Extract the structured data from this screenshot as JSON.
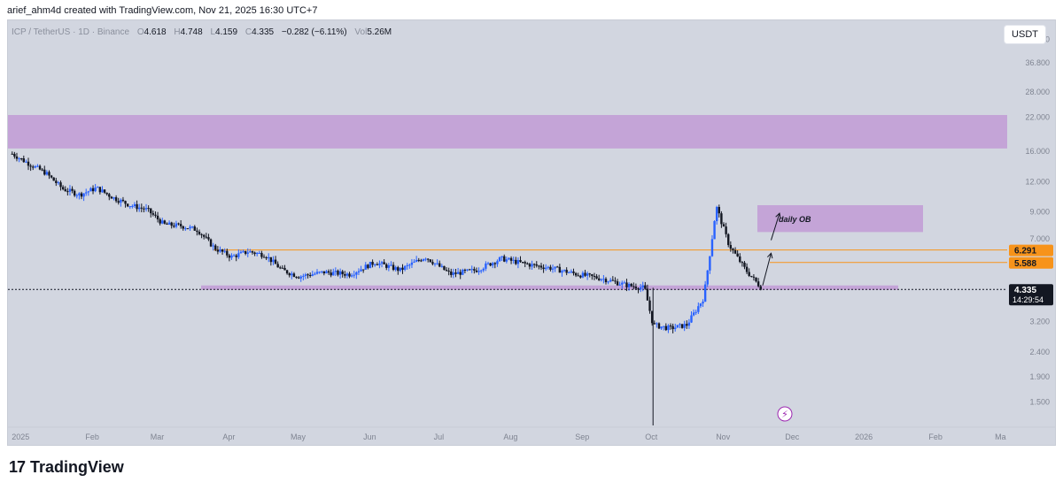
{
  "caption": "arief_ahm4d created with TradingView.com, Nov 21, 2025 16:30 UTC+7",
  "symbol": "ICP / TetherUS · 1D · Binance",
  "ohlc": {
    "open": "4.618",
    "high": "4.748",
    "low": "4.159",
    "close": "4.335",
    "change": "−0.282 (−6.11%)",
    "volume_label": "Vol",
    "volume": "5.26M"
  },
  "currency_badge": "USDT",
  "footer_brand": "TradingView",
  "chart_data": {
    "type": "candlestick",
    "y_scale": "log",
    "ylim": [
      1.2,
      55
    ],
    "y_ticks": [
      "46.000",
      "36.800",
      "28.000",
      "22.000",
      "16.000",
      "12.000",
      "9.000",
      "7.000",
      "3.200",
      "2.400",
      "1.900",
      "1.500"
    ],
    "x_ticks": [
      "2025",
      "Feb",
      "Mar",
      "Apr",
      "May",
      "Jun",
      "Jul",
      "Aug",
      "Sep",
      "Oct",
      "Nov",
      "Dec",
      "2026",
      "Feb",
      "Ma"
    ],
    "price_tags": [
      {
        "value": 6.291,
        "label": "6.291",
        "color": "#f7931a"
      },
      {
        "value": 5.588,
        "label": "5.588",
        "color": "#f7931a"
      },
      {
        "value": 4.335,
        "label": "4.335",
        "sublabel": "14:29:54",
        "color": "#131722"
      }
    ],
    "horizontal_lines": [
      {
        "value": 6.291,
        "color": "#f7931a"
      },
      {
        "value": 5.588,
        "color": "#f7931a"
      },
      {
        "value": 4.335,
        "color": "#131722",
        "dotted": true
      }
    ],
    "zones": [
      {
        "low": 16.4,
        "high": 22.5,
        "color": "#c29fd6"
      },
      {
        "low": 4.32,
        "high": 4.5,
        "color": "#c29fd6"
      },
      {
        "low": 7.45,
        "high": 9.6,
        "color": "#c29fd6",
        "label": "daily OB"
      }
    ],
    "close_path": [
      [
        2024.99,
        15.6
      ],
      [
        2025.01,
        14.2
      ],
      [
        2025.03,
        13.0
      ],
      [
        2025.05,
        11.2
      ],
      [
        2025.07,
        10.6
      ],
      [
        2025.09,
        11.3
      ],
      [
        2025.11,
        10.3
      ],
      [
        2025.13,
        9.6
      ],
      [
        2025.15,
        9.2
      ],
      [
        2025.17,
        8.0
      ],
      [
        2025.19,
        7.9
      ],
      [
        2025.21,
        7.6
      ],
      [
        2025.23,
        6.4
      ],
      [
        2025.25,
        5.9
      ],
      [
        2025.27,
        6.2
      ],
      [
        2025.29,
        6.0
      ],
      [
        2025.31,
        5.2
      ],
      [
        2025.33,
        4.9
      ],
      [
        2025.36,
        5.1
      ],
      [
        2025.39,
        5.0
      ],
      [
        2025.42,
        5.6
      ],
      [
        2025.45,
        5.2
      ],
      [
        2025.48,
        5.9
      ],
      [
        2025.51,
        5.0
      ],
      [
        2025.54,
        5.2
      ],
      [
        2025.57,
        5.8
      ],
      [
        2025.6,
        5.5
      ],
      [
        2025.63,
        5.3
      ],
      [
        2025.66,
        5.0
      ],
      [
        2025.69,
        4.8
      ],
      [
        2025.72,
        4.5
      ],
      [
        2025.74,
        4.4
      ],
      [
        2025.75,
        3.1
      ],
      [
        2025.77,
        3.0
      ],
      [
        2025.79,
        3.1
      ],
      [
        2025.81,
        4.0
      ],
      [
        2025.82,
        7.0
      ],
      [
        2025.825,
        9.5
      ],
      [
        2025.84,
        6.6
      ],
      [
        2025.86,
        5.2
      ],
      [
        2025.88,
        4.335
      ]
    ],
    "spike_low": {
      "x": 2025.75,
      "value": 1.2
    },
    "arrows": [
      {
        "from": [
          2025.88,
          4.5
        ],
        "to": [
          2025.89,
          6.1
        ]
      },
      {
        "from": [
          2025.89,
          6.9
        ],
        "to": [
          2025.9,
          8.9
        ]
      }
    ]
  }
}
